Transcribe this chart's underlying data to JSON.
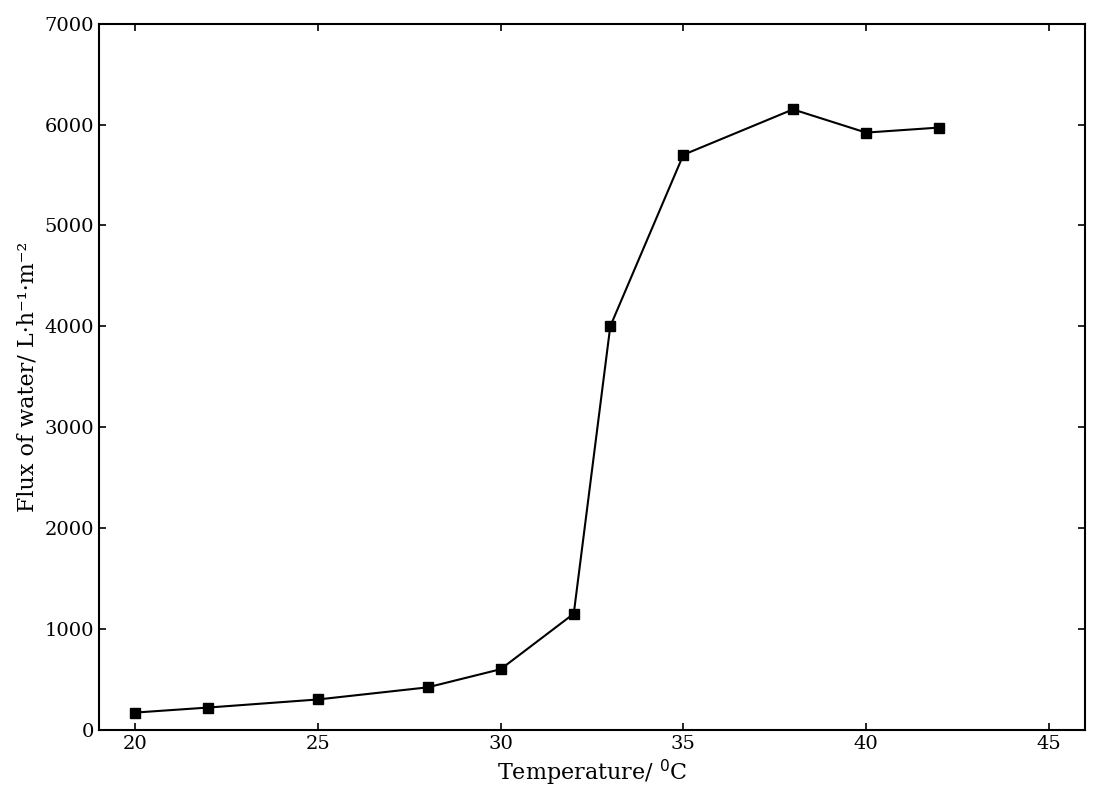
{
  "x": [
    20,
    22,
    25,
    28,
    30,
    32,
    33,
    35,
    38,
    40,
    42
  ],
  "y": [
    170,
    220,
    300,
    420,
    600,
    1150,
    4000,
    5700,
    6150,
    5920,
    5970
  ],
  "xlabel": "Temperature/ °C",
  "ylabel": "Flux of water/ L·h⁻¹·m⁻²",
  "xlim": [
    19,
    46
  ],
  "ylim": [
    0,
    7000
  ],
  "xticks": [
    20,
    25,
    30,
    35,
    40,
    45
  ],
  "yticks": [
    0,
    1000,
    2000,
    3000,
    4000,
    5000,
    6000,
    7000
  ],
  "marker": "s",
  "marker_color": "black",
  "line_color": "black",
  "line_style": "-",
  "marker_size": 7,
  "line_width": 1.5,
  "background_color": "#ffffff",
  "label_fontsize": 16,
  "tick_fontsize": 14
}
